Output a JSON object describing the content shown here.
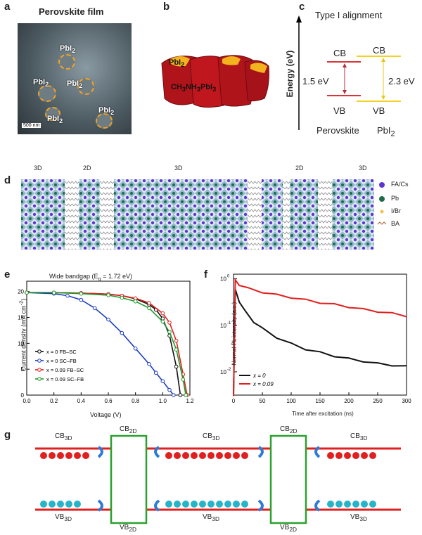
{
  "panel_a": {
    "letter": "a",
    "title": "Perovskite film",
    "labels": [
      "PbI",
      "PbI",
      "PbI",
      "PbI",
      "PbI",
      "PbI"
    ],
    "subscript": "2",
    "scalebar": "500 nm"
  },
  "panel_b": {
    "letter": "b",
    "pbi_label": "PbI",
    "pbi_sub": "2",
    "crystal_label": "CH",
    "crystal_label_parts": [
      "3",
      "NH",
      "3",
      "PbI",
      "3"
    ]
  },
  "panel_c": {
    "letter": "c",
    "title": "Type I alignment",
    "ylabel": "Energy (eV)",
    "cb": "CB",
    "vb": "VB",
    "gap1": "1.5 eV",
    "gap2": "2.3 eV",
    "material1": "Perovskite",
    "material2": "PbI",
    "material2_sub": "2"
  },
  "panel_d": {
    "letter": "d",
    "segments": [
      "3D",
      "2D",
      "3D",
      "2D",
      "3D"
    ],
    "legend": [
      "FA/Cs",
      "Pb",
      "I/Br",
      "BA"
    ],
    "colors": {
      "fa": "#5c35d4",
      "pb": "#1f6b4a",
      "i": "#f2c24b",
      "ba": "#b0603a"
    }
  },
  "panel_e": {
    "letter": "e",
    "chart_data": {
      "type": "line",
      "title": "Wide bandgap (E",
      "title_sub": "g",
      "title_tail": " = 1.72 eV)",
      "xlabel": "Voltage (V)",
      "ylabel": "Current density (mA cm",
      "ylabel_sup": "-2",
      "ylabel_tail": ")",
      "xlim": [
        0,
        1.2
      ],
      "ylim": [
        0,
        22
      ],
      "xticks": [
        "0.0",
        "0.2",
        "0.4",
        "0.6",
        "0.8",
        "1.0",
        "1.2"
      ],
      "yticks": [
        "0",
        "5",
        "10",
        "15",
        "20"
      ],
      "series": [
        {
          "name": "x = 0 FB–SC",
          "color": "#111111",
          "x": [
            0,
            0.2,
            0.4,
            0.6,
            0.7,
            0.8,
            0.9,
            0.95,
            1.0,
            1.05,
            1.1,
            1.13
          ],
          "y": [
            19.8,
            19.8,
            19.7,
            19.5,
            19.2,
            18.6,
            17.5,
            16.5,
            14.8,
            11.5,
            5.5,
            0
          ]
        },
        {
          "name": "x = 0 SC–FB",
          "color": "#1f3fbf",
          "x": [
            0,
            0.2,
            0.3,
            0.4,
            0.5,
            0.6,
            0.7,
            0.8,
            0.9,
            0.95,
            1.0,
            1.05,
            1.08
          ],
          "y": [
            19.8,
            19.6,
            19.2,
            18.4,
            16.8,
            14.6,
            12.0,
            9.0,
            6.0,
            4.3,
            2.7,
            1.0,
            0
          ]
        },
        {
          "name": "x = 0.09 FB–SC",
          "color": "#e0201f",
          "x": [
            0,
            0.2,
            0.4,
            0.6,
            0.7,
            0.8,
            0.9,
            1.0,
            1.05,
            1.1,
            1.15,
            1.18
          ],
          "y": [
            19.8,
            19.8,
            19.7,
            19.5,
            19.2,
            18.7,
            17.8,
            15.8,
            14.0,
            10.5,
            4.0,
            0
          ]
        },
        {
          "name": "x = 0.09 SC–FB",
          "color": "#1f9a2a",
          "x": [
            0,
            0.2,
            0.4,
            0.6,
            0.7,
            0.8,
            0.9,
            1.0,
            1.05,
            1.1,
            1.15,
            1.17
          ],
          "y": [
            19.8,
            19.8,
            19.6,
            19.3,
            18.8,
            18.1,
            16.8,
            14.2,
            12.2,
            8.8,
            3.0,
            0
          ]
        }
      ]
    }
  },
  "panel_f": {
    "letter": "f",
    "chart_data": {
      "type": "line",
      "xlabel": "Time after excitation (ns)",
      "ylabel": "Normal PL intensity (a.u.)",
      "xlim": [
        0,
        300
      ],
      "ylog": true,
      "ylim_log": [
        -2.5,
        0.1
      ],
      "xticks": [
        "0",
        "50",
        "100",
        "150",
        "200",
        "250",
        "300"
      ],
      "yticks": [
        "10",
        "10",
        "10"
      ],
      "ytick_exps": [
        "0",
        "-1",
        "-2"
      ],
      "series": [
        {
          "name": "x = 0",
          "color": "#111111",
          "x": [
            3,
            10,
            20,
            35,
            50,
            75,
            100,
            125,
            150,
            175,
            200,
            225,
            250,
            275,
            300
          ],
          "y": [
            0.6,
            0.33,
            0.2,
            0.12,
            0.085,
            0.055,
            0.04,
            0.031,
            0.026,
            0.022,
            0.019,
            0.017,
            0.015,
            0.014,
            0.013
          ]
        },
        {
          "name": "x = 0.09",
          "color": "#e0201f",
          "x": [
            3,
            10,
            25,
            50,
            75,
            100,
            125,
            150,
            175,
            200,
            225,
            250,
            275,
            300
          ],
          "y": [
            0.95,
            0.75,
            0.62,
            0.52,
            0.45,
            0.4,
            0.35,
            0.31,
            0.28,
            0.25,
            0.22,
            0.2,
            0.18,
            0.16
          ]
        }
      ]
    }
  },
  "panel_g": {
    "letter": "g",
    "cb3d": "CB",
    "vb3d": "VB",
    "cb2d": "CB",
    "vb2d": "VB",
    "sub3d": "3D",
    "sub2d": "2D"
  }
}
